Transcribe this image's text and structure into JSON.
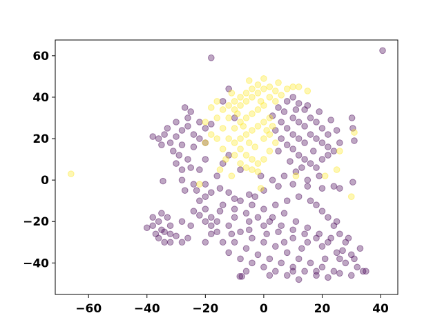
{
  "chart_data": {
    "type": "scatter",
    "title": "",
    "xlabel": "",
    "ylabel": "",
    "xlim": [
      -71.4,
      45.9
    ],
    "ylim": [
      -55.2,
      67.6
    ],
    "xticks": [
      -60,
      -40,
      -20,
      0,
      20,
      40
    ],
    "yticks": [
      -40,
      -20,
      0,
      20,
      40,
      60
    ],
    "xtick_labels": [
      "−60",
      "−40",
      "−20",
      "0",
      "20",
      "40"
    ],
    "ytick_labels": [
      "−40",
      "−20",
      "0",
      "20",
      "40",
      "60"
    ],
    "grid": false,
    "legend": "none",
    "marker_alpha": 0.35,
    "series": [
      {
        "color": "#440154",
        "points": [
          [
            -18,
            59
          ],
          [
            40.7,
            62.5
          ],
          [
            30.2,
            30
          ],
          [
            30.5,
            25
          ],
          [
            31,
            19
          ],
          [
            26,
            -4
          ],
          [
            30.5,
            -1
          ],
          [
            -8.2,
            -46.5
          ],
          [
            -7.5,
            -46.5
          ],
          [
            -34.5,
            -0.5
          ],
          [
            -27,
            -5
          ],
          [
            -23,
            -5
          ],
          [
            -20,
            -8
          ],
          [
            -18,
            -6
          ],
          [
            -15,
            -4
          ],
          [
            -10,
            -9
          ],
          [
            -5,
            -7
          ],
          [
            0,
            -5
          ],
          [
            5,
            -3
          ],
          [
            10,
            -2
          ],
          [
            15,
            -3
          ],
          [
            20,
            -4
          ],
          [
            24,
            -3
          ],
          [
            -28,
            5
          ],
          [
            -25,
            6
          ],
          [
            -22,
            5
          ],
          [
            -30,
            8
          ],
          [
            -26,
            10
          ],
          [
            -28,
            -20
          ],
          [
            -25,
            -22
          ],
          [
            -24,
            -15
          ],
          [
            -22,
            -17
          ],
          [
            -20,
            -20
          ],
          [
            -18,
            -22
          ],
          [
            -26,
            -28
          ],
          [
            -28,
            -30
          ],
          [
            -35,
            -24
          ],
          [
            -38,
            -22
          ],
          [
            -36,
            -28
          ],
          [
            -34,
            -30
          ],
          [
            -32,
            -26
          ],
          [
            -40,
            -23
          ],
          [
            -38,
            -18
          ],
          [
            -33,
            -18
          ],
          [
            -36,
            -20
          ],
          [
            -34,
            -25
          ],
          [
            -30,
            -27
          ],
          [
            -32,
            -22
          ],
          [
            -37,
            -26
          ],
          [
            -35,
            -16
          ],
          [
            -32,
            -30
          ],
          [
            -30,
            21
          ],
          [
            -28,
            24
          ],
          [
            -26,
            26
          ],
          [
            -24,
            22
          ],
          [
            -22,
            28
          ],
          [
            -20,
            25
          ],
          [
            -32,
            18
          ],
          [
            -34,
            22
          ],
          [
            -36,
            20
          ],
          [
            -30,
            28
          ],
          [
            -26,
            30
          ],
          [
            -28,
            17
          ],
          [
            -24,
            16
          ],
          [
            -31,
            14
          ],
          [
            -29,
            12
          ],
          [
            -33,
            25
          ],
          [
            -22,
            20
          ],
          [
            -20,
            18
          ],
          [
            -38,
            21
          ],
          [
            -25,
            33
          ],
          [
            -27,
            35
          ],
          [
            -18,
            27
          ],
          [
            -35,
            17
          ],
          [
            5,
            35
          ],
          [
            8,
            38
          ],
          [
            10,
            40
          ],
          [
            12,
            37
          ],
          [
            14,
            34
          ],
          [
            16,
            30
          ],
          [
            18,
            28
          ],
          [
            20,
            25
          ],
          [
            22,
            22
          ],
          [
            10,
            30
          ],
          [
            12,
            28
          ],
          [
            14,
            26
          ],
          [
            16,
            22
          ],
          [
            18,
            20
          ],
          [
            20,
            18
          ],
          [
            22,
            16
          ],
          [
            8,
            25
          ],
          [
            10,
            22
          ],
          [
            12,
            20
          ],
          [
            14,
            18
          ],
          [
            6,
            28
          ],
          [
            4,
            24
          ],
          [
            6,
            20
          ],
          [
            8,
            17
          ],
          [
            10,
            15
          ],
          [
            12,
            12
          ],
          [
            14,
            10
          ],
          [
            16,
            8
          ],
          [
            18,
            6
          ],
          [
            20,
            10
          ],
          [
            22,
            12
          ],
          [
            24,
            14
          ],
          [
            26,
            18
          ],
          [
            3,
            31
          ],
          [
            7,
            33
          ],
          [
            11,
            34
          ],
          [
            15,
            36
          ],
          [
            19,
            33
          ],
          [
            23,
            29
          ],
          [
            25,
            24
          ],
          [
            9,
            9
          ],
          [
            13,
            6
          ],
          [
            5,
            14
          ],
          [
            17,
            14
          ],
          [
            -12,
            44
          ],
          [
            -14,
            38
          ],
          [
            -10,
            30
          ],
          [
            -12,
            12
          ],
          [
            -14,
            8
          ],
          [
            -8,
            5
          ],
          [
            -16,
            2
          ],
          [
            -20,
            10
          ],
          [
            -15,
            -15
          ],
          [
            -10,
            -18
          ],
          [
            -5,
            -20
          ],
          [
            0,
            -22
          ],
          [
            5,
            -25
          ],
          [
            10,
            -28
          ],
          [
            15,
            -30
          ],
          [
            20,
            -32
          ],
          [
            25,
            -35
          ],
          [
            -12,
            -22
          ],
          [
            -8,
            -25
          ],
          [
            -4,
            -28
          ],
          [
            0,
            -30
          ],
          [
            4,
            -32
          ],
          [
            8,
            -35
          ],
          [
            12,
            -38
          ],
          [
            16,
            -40
          ],
          [
            20,
            -42
          ],
          [
            24,
            -44
          ],
          [
            -10,
            -30
          ],
          [
            -6,
            -33
          ],
          [
            -2,
            -36
          ],
          [
            2,
            -38
          ],
          [
            6,
            -40
          ],
          [
            10,
            -42
          ],
          [
            14,
            -44
          ],
          [
            18,
            -46
          ],
          [
            22,
            -47
          ],
          [
            26,
            -45
          ],
          [
            -14,
            -12
          ],
          [
            -10,
            -14
          ],
          [
            -6,
            -16
          ],
          [
            -2,
            -18
          ],
          [
            2,
            -20
          ],
          [
            6,
            -22
          ],
          [
            10,
            -24
          ],
          [
            14,
            -26
          ],
          [
            18,
            -28
          ],
          [
            22,
            -30
          ],
          [
            -18,
            -18
          ],
          [
            -16,
            -25
          ],
          [
            -14,
            -30
          ],
          [
            -12,
            -35
          ],
          [
            -8,
            -38
          ],
          [
            -4,
            -40
          ],
          [
            0,
            -42
          ],
          [
            4,
            -44
          ],
          [
            8,
            -46
          ],
          [
            12,
            -48
          ],
          [
            -20,
            -14
          ],
          [
            -22,
            -10
          ],
          [
            26,
            -38
          ],
          [
            28,
            -40
          ],
          [
            30,
            -36
          ],
          [
            32,
            -42
          ],
          [
            34,
            -44
          ],
          [
            28,
            -30
          ],
          [
            26,
            -26
          ],
          [
            24,
            -22
          ],
          [
            22,
            -18
          ],
          [
            20,
            -15
          ],
          [
            18,
            -12
          ],
          [
            16,
            -10
          ],
          [
            12,
            -8
          ],
          [
            8,
            -10
          ],
          [
            4,
            -12
          ],
          [
            0,
            -14
          ],
          [
            -4,
            -12
          ],
          [
            -8,
            -10
          ],
          [
            -12,
            -6
          ],
          [
            -3,
            -8
          ],
          [
            3,
            -18
          ],
          [
            7,
            -16
          ],
          [
            11,
            -20
          ],
          [
            15,
            -23
          ],
          [
            19,
            -26
          ],
          [
            23,
            -28
          ],
          [
            27,
            -34
          ],
          [
            31,
            -38
          ],
          [
            -16,
            -20
          ],
          [
            -18,
            -26
          ],
          [
            -20,
            -30
          ],
          [
            -6,
            -44
          ],
          [
            2,
            -46
          ],
          [
            10,
            -44
          ],
          [
            18,
            -44
          ],
          [
            21,
            -38
          ],
          [
            13,
            -33
          ],
          [
            7,
            -30
          ],
          [
            1,
            -26
          ],
          [
            -5,
            -24
          ],
          [
            -11,
            -26
          ],
          [
            30,
            -46
          ],
          [
            35,
            -44
          ],
          [
            33,
            -33
          ],
          [
            29,
            -28
          ],
          [
            25,
            -20
          ],
          [
            -1,
            2
          ],
          [
            3,
            0
          ],
          [
            7,
            2
          ],
          [
            11,
            4
          ],
          [
            15,
            0
          ],
          [
            19,
            2
          ],
          [
            -24,
            -2
          ],
          [
            -28,
            0
          ],
          [
            -20,
            -2
          ]
        ]
      },
      {
        "color": "#fde725",
        "points": [
          [
            -66,
            3
          ],
          [
            31,
            23
          ],
          [
            26,
            14
          ],
          [
            -10,
            25
          ],
          [
            -8,
            28
          ],
          [
            -6,
            30
          ],
          [
            -4,
            32
          ],
          [
            -2,
            34
          ],
          [
            0,
            36
          ],
          [
            -12,
            30
          ],
          [
            -10,
            34
          ],
          [
            -8,
            36
          ],
          [
            -6,
            38
          ],
          [
            -4,
            40
          ],
          [
            -2,
            42
          ],
          [
            0,
            44
          ],
          [
            2,
            40
          ],
          [
            4,
            38
          ],
          [
            -14,
            25
          ],
          [
            -12,
            20
          ],
          [
            -10,
            18
          ],
          [
            -8,
            15
          ],
          [
            -6,
            12
          ],
          [
            -4,
            10
          ],
          [
            -2,
            8
          ],
          [
            0,
            10
          ],
          [
            2,
            14
          ],
          [
            4,
            18
          ],
          [
            -16,
            30
          ],
          [
            -14,
            34
          ],
          [
            -12,
            36
          ],
          [
            -10,
            38
          ],
          [
            -8,
            40
          ],
          [
            -6,
            42
          ],
          [
            -4,
            44
          ],
          [
            -2,
            46
          ],
          [
            2,
            45
          ],
          [
            4,
            43
          ],
          [
            6,
            41
          ],
          [
            -18,
            35
          ],
          [
            -16,
            38
          ],
          [
            -8,
            20
          ],
          [
            -6,
            22
          ],
          [
            -4,
            24
          ],
          [
            -2,
            26
          ],
          [
            0,
            28
          ],
          [
            2,
            30
          ],
          [
            -10,
            12
          ],
          [
            -8,
            8
          ],
          [
            -6,
            6
          ],
          [
            -4,
            5
          ],
          [
            -2,
            4
          ],
          [
            0,
            20
          ],
          [
            2,
            22
          ],
          [
            -14,
            15
          ],
          [
            -16,
            20
          ],
          [
            -18,
            22
          ],
          [
            -20,
            28
          ],
          [
            -20,
            18
          ],
          [
            -5,
            48
          ],
          [
            0,
            49
          ],
          [
            5,
            47
          ],
          [
            10,
            45
          ],
          [
            15,
            43
          ],
          [
            8,
            44
          ],
          [
            -1,
            38
          ],
          [
            -3,
            16
          ],
          [
            -5,
            18
          ],
          [
            -7,
            26
          ],
          [
            -9,
            32
          ],
          [
            -11,
            42
          ],
          [
            1,
            24
          ],
          [
            3,
            26
          ],
          [
            -13,
            10
          ],
          [
            -15,
            5
          ],
          [
            12,
            45
          ],
          [
            -22,
            -2
          ],
          [
            -11,
            2
          ],
          [
            -1,
            -4
          ],
          [
            11,
            2
          ],
          [
            21,
            2
          ],
          [
            25,
            5
          ],
          [
            30,
            -8
          ]
        ]
      }
    ]
  }
}
